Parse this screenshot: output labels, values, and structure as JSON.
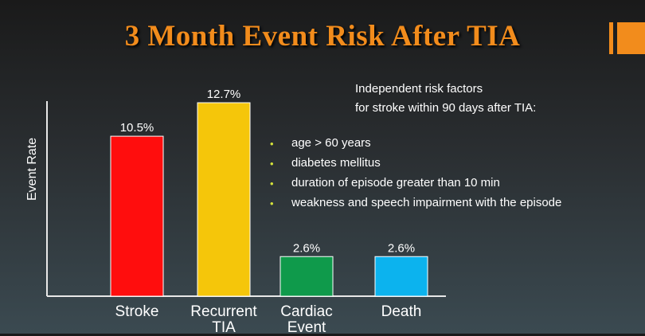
{
  "slide": {
    "title": "3 Month Event Risk After TIA"
  },
  "chart_data": {
    "type": "bar",
    "ylabel": "Event Rate",
    "categories": [
      "Stroke",
      "Recurrent TIA",
      "Cardiac Event",
      "Death"
    ],
    "category_lines": [
      [
        "Stroke"
      ],
      [
        "Recurrent",
        "TIA"
      ],
      [
        "Cardiac",
        "Event"
      ],
      [
        "Death"
      ]
    ],
    "values": [
      10.5,
      12.7,
      2.6,
      2.6
    ],
    "data_labels": [
      "10.5%",
      "12.7%",
      "2.6%",
      "2.6%"
    ],
    "colors": [
      "#ff0d0d",
      "#f5c60a",
      "#0f9a4b",
      "#0cb3ee"
    ],
    "ylim": [
      0,
      12.7
    ],
    "grid": false
  },
  "notes": {
    "line1": "Independent risk factors",
    "line2": "for stroke within 90 days after TIA:",
    "bullets": [
      "age > 60 years",
      "diabetes mellitus",
      "duration of episode greater than 10 min",
      "weakness and speech impairment with the episode"
    ]
  }
}
